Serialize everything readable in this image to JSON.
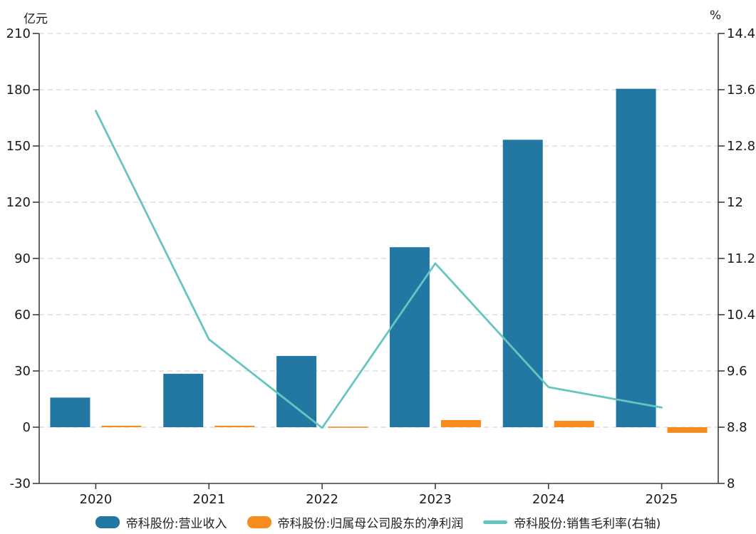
{
  "chart_data": {
    "type": "bar",
    "subtype": "grouped-bars-with-line-overlay",
    "categories": [
      "2020",
      "2021",
      "2022",
      "2023",
      "2024",
      "2025"
    ],
    "series": [
      {
        "name": "帝科股份:营业收入",
        "type": "bar",
        "axis": "left",
        "color": "#2278a3",
        "values": [
          15.8,
          28.5,
          38.0,
          96.0,
          153.3,
          180.5
        ]
      },
      {
        "name": "帝科股份:归属母公司股东的净利润",
        "type": "bar",
        "axis": "left",
        "color": "#f78c1e",
        "values": [
          0.8,
          0.8,
          0.3,
          3.8,
          3.4,
          -3.0
        ]
      },
      {
        "name": "帝科股份:销售毛利率(右轴)",
        "type": "line",
        "axis": "right",
        "color": "#66c6bf",
        "values": [
          13.3,
          10.05,
          8.79,
          11.13,
          9.37,
          9.08
        ]
      }
    ],
    "left_axis": {
      "unit": "亿元",
      "min": -30,
      "max": 210,
      "ticks": [
        "210",
        "180",
        "150",
        "120",
        "90",
        "60",
        "30",
        "0",
        "-30"
      ]
    },
    "right_axis": {
      "unit": "%",
      "min": 8,
      "max": 14.4,
      "ticks": [
        "14.4",
        "13.6",
        "12.8",
        "12",
        "11.2",
        "10.4",
        "9.6",
        "8.8",
        "8"
      ]
    },
    "grid": "horizontal-dashed",
    "legend_position": "bottom",
    "colors": {
      "gridline": "#dedede",
      "axis": "#3d3d3d",
      "tick_text": "#1a1a1a"
    }
  }
}
